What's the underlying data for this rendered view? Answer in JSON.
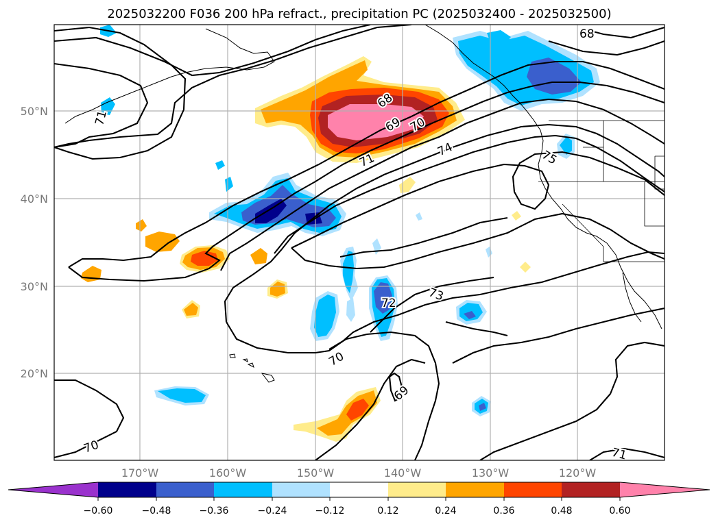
{
  "title": "2025032200 F036 200 hPa refract., precipitation PC (2025032400 - 2025032500)",
  "lat_labels": [
    "50°N",
    "40°N",
    "30°N",
    "20°N"
  ],
  "lon_labels": [
    "170°W",
    "160°W",
    "150°W",
    "140°W",
    "130°W",
    "120°W"
  ],
  "colorbar": {
    "tick_labels": [
      "−0.60",
      "−0.48",
      "−0.36",
      "−0.24",
      "−0.12",
      "0.12",
      "0.24",
      "0.36",
      "0.48",
      "0.60"
    ],
    "colors": [
      "#9a32cd",
      "#00008b",
      "#3a5fcd",
      "#00bfff",
      "#b0e2ff",
      "#ffffff",
      "#ffec8b",
      "#ffa500",
      "#ff4500",
      "#b22222",
      "#ff82ab"
    ]
  },
  "contour_labels": [
    "68",
    "68",
    "69",
    "70",
    "71",
    "71",
    "74",
    "75",
    "73",
    "72",
    "70",
    "69",
    "70",
    "71"
  ]
}
